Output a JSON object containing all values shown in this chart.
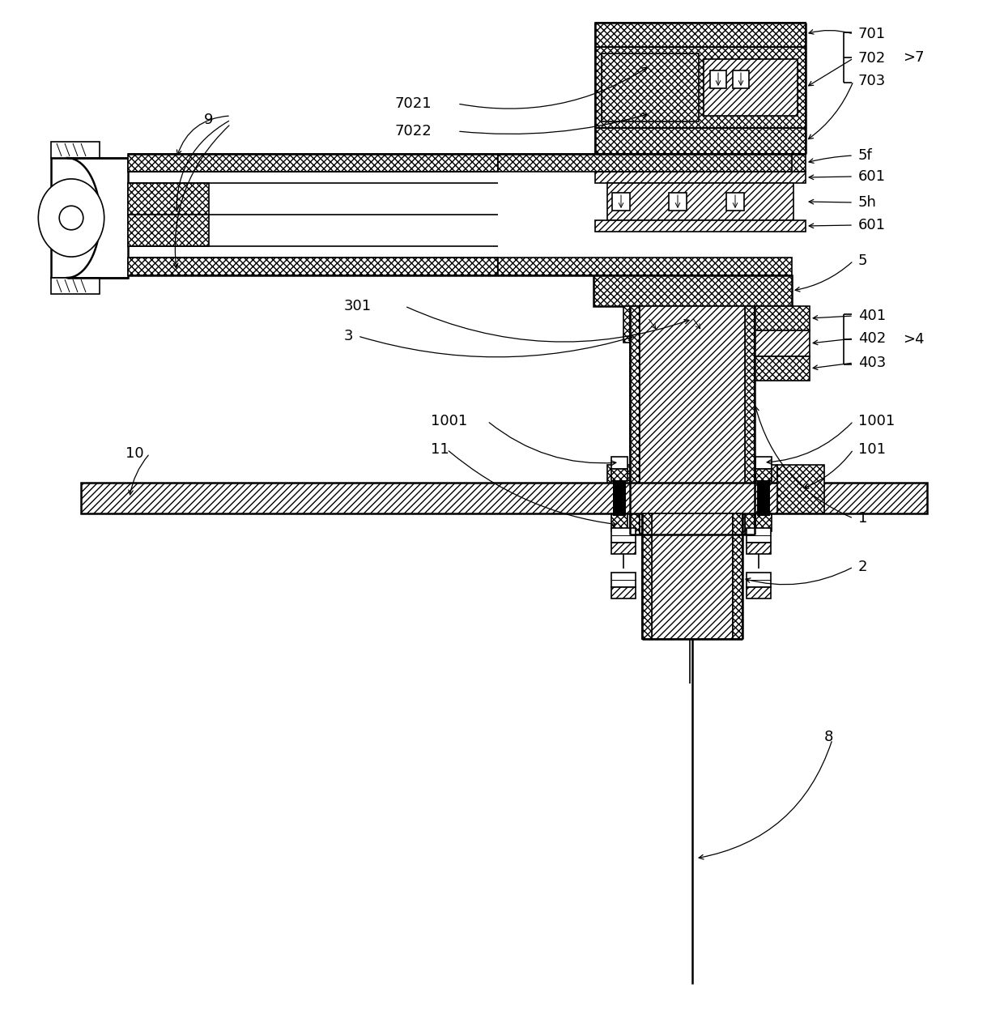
{
  "bg_color": "#ffffff",
  "figsize": [
    12.4,
    12.57
  ],
  "dpi": 100,
  "black": "#000000"
}
